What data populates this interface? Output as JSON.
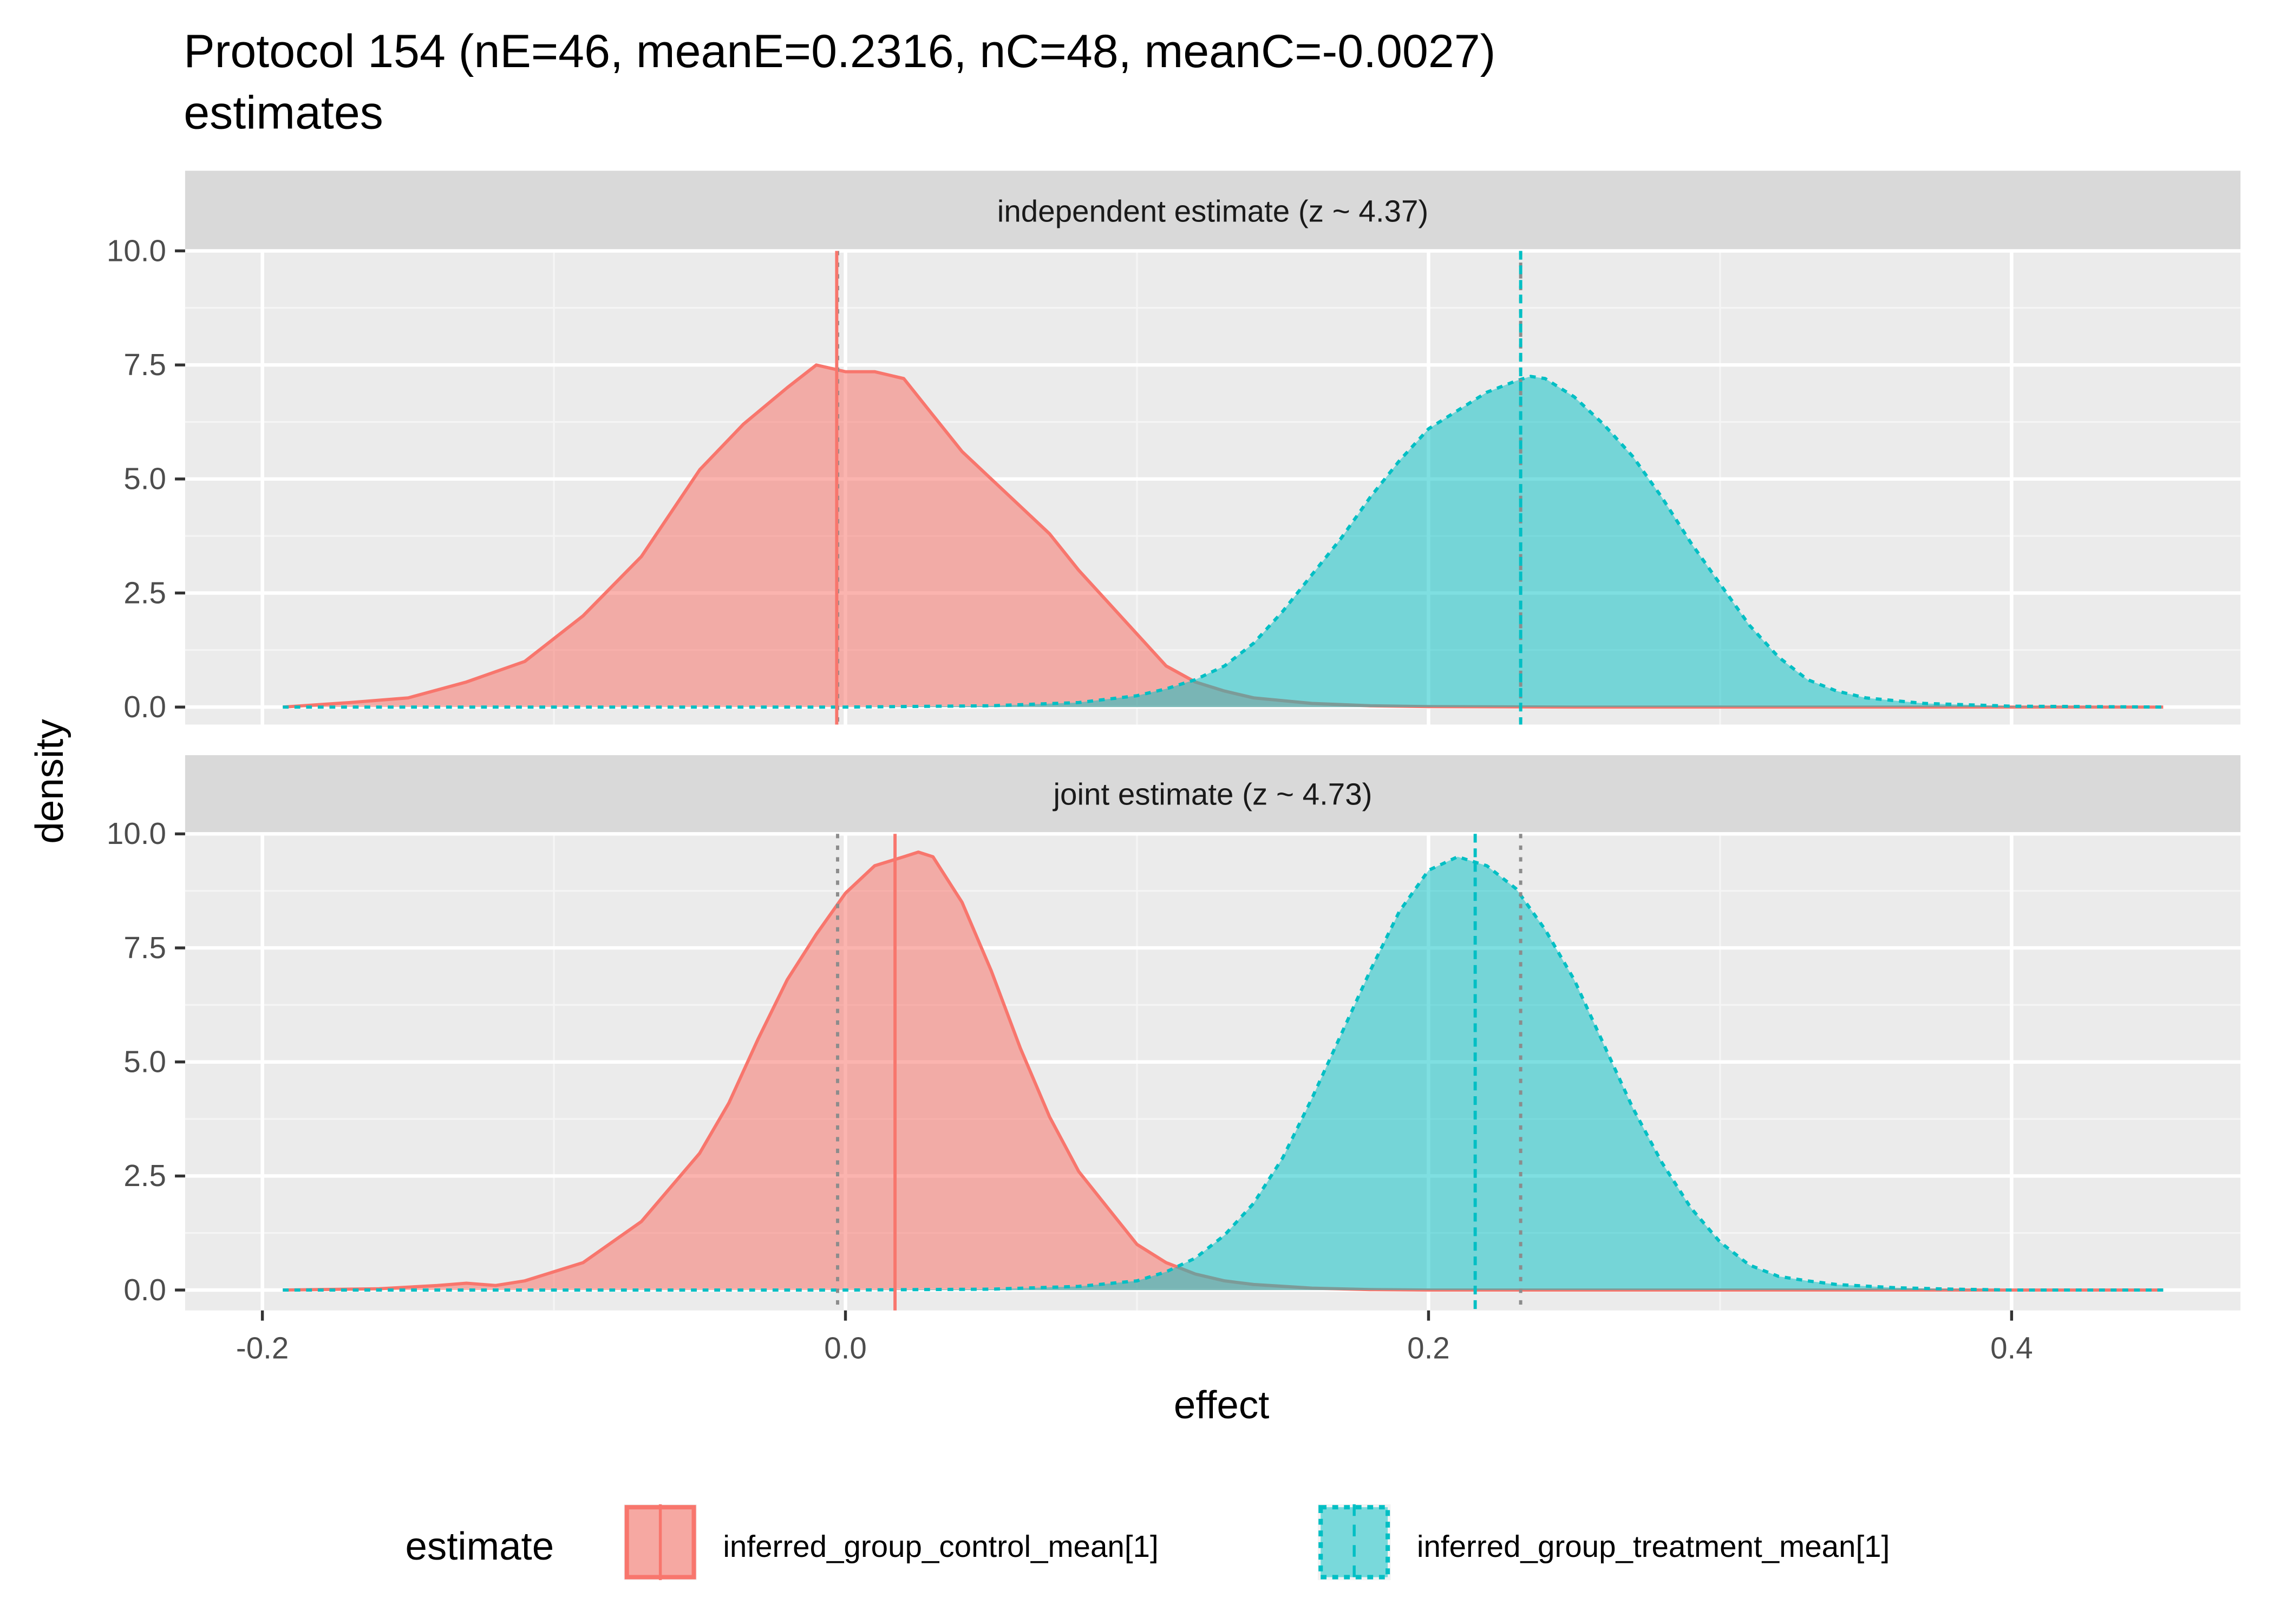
{
  "chart_data": {
    "type": "area",
    "title": "Protocol 154 (nE=46, meanE=0.2316, nC=48, meanC=-0.0027)",
    "subtitle": "estimates",
    "xlabel": "effect",
    "ylabel": "density",
    "xlim": [
      -0.225,
      0.475
    ],
    "ylim": [
      0,
      10
    ],
    "x_ticks": [
      -0.2,
      0.0,
      0.2,
      0.4
    ],
    "x_tick_labels": [
      "-0.2",
      "0.0",
      "0.2",
      "0.4"
    ],
    "y_ticks": [
      0,
      2.5,
      5,
      7.5,
      10
    ],
    "y_tick_labels": [
      "0.0",
      "2.5",
      "5.0",
      "7.5",
      "10.0"
    ],
    "grid": true,
    "legend": {
      "title": "estimate",
      "position": "bottom",
      "entries": [
        {
          "label": "inferred_group_control_mean[1]",
          "color": "#F8766D",
          "linetype": "solid"
        },
        {
          "label": "inferred_group_treatment_mean[1]",
          "color": "#00BFC4",
          "linetype": "dashed"
        }
      ]
    },
    "reference_lines": [
      -0.0027,
      0.2316
    ],
    "panels": [
      {
        "strip": "independent estimate (z ~  4.37)",
        "series": [
          {
            "name": "inferred_group_control_mean[1]",
            "mean_line": -0.003,
            "x": [
              -0.193,
              -0.17,
              -0.15,
              -0.13,
              -0.11,
              -0.09,
              -0.07,
              -0.05,
              -0.035,
              -0.02,
              -0.01,
              0.0,
              0.01,
              0.02,
              0.03,
              0.04,
              0.05,
              0.06,
              0.07,
              0.08,
              0.09,
              0.1,
              0.11,
              0.12,
              0.13,
              0.14,
              0.16,
              0.18,
              0.2,
              0.25,
              0.3,
              0.35,
              0.4,
              0.452
            ],
            "y": [
              0.0,
              0.1,
              0.2,
              0.55,
              1.0,
              2.0,
              3.3,
              5.2,
              6.2,
              7.0,
              7.5,
              7.35,
              7.35,
              7.2,
              6.4,
              5.6,
              5.0,
              4.4,
              3.8,
              3.0,
              2.3,
              1.6,
              0.9,
              0.55,
              0.35,
              0.2,
              0.08,
              0.03,
              0.01,
              0.0,
              0.0,
              0.0,
              0.0,
              0.0
            ]
          },
          {
            "name": "inferred_group_treatment_mean[1]",
            "mean_line": 0.2316,
            "x": [
              -0.193,
              0.0,
              0.05,
              0.08,
              0.1,
              0.11,
              0.12,
              0.13,
              0.14,
              0.15,
              0.16,
              0.17,
              0.18,
              0.19,
              0.2,
              0.21,
              0.22,
              0.23,
              0.235,
              0.24,
              0.25,
              0.26,
              0.27,
              0.28,
              0.29,
              0.3,
              0.31,
              0.32,
              0.33,
              0.34,
              0.35,
              0.37,
              0.4,
              0.452
            ],
            "y": [
              0.0,
              0.0,
              0.03,
              0.1,
              0.25,
              0.4,
              0.6,
              0.9,
              1.4,
              2.1,
              2.9,
              3.7,
              4.6,
              5.4,
              6.1,
              6.5,
              6.9,
              7.15,
              7.25,
              7.2,
              6.8,
              6.2,
              5.5,
              4.6,
              3.6,
              2.7,
              1.8,
              1.1,
              0.6,
              0.35,
              0.2,
              0.08,
              0.02,
              0.0
            ]
          }
        ]
      },
      {
        "strip": "joint estimate (z ~  4.73)",
        "series": [
          {
            "name": "inferred_group_control_mean[1]",
            "mean_line": 0.017,
            "x": [
              -0.193,
              -0.16,
              -0.14,
              -0.13,
              -0.12,
              -0.11,
              -0.09,
              -0.07,
              -0.05,
              -0.04,
              -0.03,
              -0.02,
              -0.01,
              0.0,
              0.01,
              0.02,
              0.025,
              0.03,
              0.04,
              0.05,
              0.06,
              0.07,
              0.08,
              0.09,
              0.1,
              0.11,
              0.12,
              0.13,
              0.14,
              0.16,
              0.18,
              0.2,
              0.3,
              0.452
            ],
            "y": [
              0.0,
              0.03,
              0.1,
              0.15,
              0.1,
              0.2,
              0.6,
              1.5,
              3.0,
              4.1,
              5.5,
              6.8,
              7.8,
              8.7,
              9.3,
              9.5,
              9.6,
              9.5,
              8.5,
              7.0,
              5.3,
              3.8,
              2.6,
              1.8,
              1.0,
              0.6,
              0.35,
              0.2,
              0.12,
              0.04,
              0.01,
              0.0,
              0.0,
              0.0
            ]
          },
          {
            "name": "inferred_group_treatment_mean[1]",
            "mean_line": 0.216,
            "x": [
              -0.193,
              0.0,
              0.05,
              0.08,
              0.1,
              0.11,
              0.12,
              0.13,
              0.14,
              0.15,
              0.16,
              0.17,
              0.18,
              0.19,
              0.2,
              0.21,
              0.22,
              0.23,
              0.24,
              0.25,
              0.26,
              0.27,
              0.28,
              0.29,
              0.3,
              0.31,
              0.32,
              0.33,
              0.34,
              0.36,
              0.38,
              0.4,
              0.452
            ],
            "y": [
              0.0,
              0.0,
              0.02,
              0.08,
              0.2,
              0.4,
              0.7,
              1.2,
              1.9,
              2.9,
              4.2,
              5.6,
              7.0,
              8.3,
              9.2,
              9.5,
              9.3,
              8.8,
              7.9,
              6.8,
              5.4,
              4.0,
              2.8,
              1.8,
              1.05,
              0.55,
              0.3,
              0.2,
              0.12,
              0.05,
              0.02,
              0.0,
              0.0
            ]
          }
        ]
      }
    ]
  }
}
